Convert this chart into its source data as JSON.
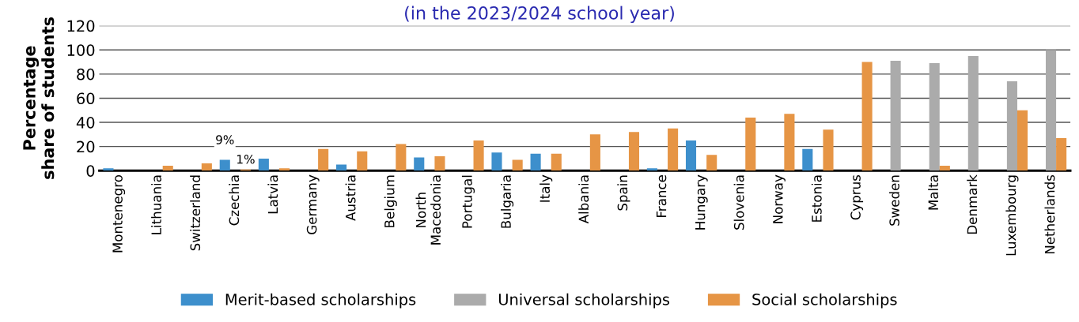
{
  "chart_data": {
    "type": "bar",
    "subtitle": "(in the 2023/2024 school year)",
    "ylabel": "Percentage\nshare of students",
    "categories": [
      "Montenegro",
      "Lithuania",
      "Switzerland",
      "Czechia",
      "Latvia",
      "Germany",
      "Austria",
      "Belgium",
      "North\nMacedonia",
      "Portugal",
      "Bulgaria",
      "Italy",
      "Albania",
      "Spain",
      "France",
      "Hungary",
      "Slovenia",
      "Norway",
      "Estonia",
      "Cyprus",
      "Sweden",
      "Malta",
      "Denmark",
      "Luxembourg",
      "Netherlands"
    ],
    "series": [
      {
        "name": "Merit-based scholarships",
        "color": "#3d8fcc",
        "values": [
          2,
          null,
          null,
          9,
          10,
          null,
          5,
          null,
          11,
          null,
          15,
          14,
          null,
          null,
          2,
          25,
          null,
          null,
          18,
          null,
          null,
          null,
          null,
          null,
          null
        ],
        "value_labels": [
          null,
          null,
          null,
          "9%",
          null,
          null,
          null,
          null,
          null,
          null,
          null,
          null,
          null,
          null,
          null,
          null,
          null,
          null,
          null,
          null,
          null,
          null,
          null,
          null,
          null
        ]
      },
      {
        "name": "Universal scholarships",
        "color": "#ababab",
        "values": [
          null,
          null,
          null,
          null,
          null,
          null,
          null,
          null,
          null,
          null,
          null,
          null,
          null,
          null,
          null,
          null,
          null,
          null,
          null,
          null,
          91,
          89,
          95,
          74,
          100
        ]
      },
      {
        "name": "Social scholarships",
        "color": "#e69545",
        "values": [
          null,
          4,
          6,
          1,
          2,
          18,
          16,
          22,
          12,
          25,
          9,
          14,
          30,
          32,
          35,
          13,
          44,
          47,
          34,
          90,
          null,
          4,
          null,
          50,
          27
        ],
        "value_labels": [
          null,
          null,
          null,
          "1%",
          null,
          null,
          null,
          null,
          null,
          null,
          null,
          null,
          null,
          null,
          null,
          null,
          null,
          null,
          null,
          null,
          null,
          null,
          null,
          null,
          null
        ]
      }
    ],
    "ylim": [
      0,
      120
    ],
    "yticks": [
      0,
      20,
      40,
      60,
      80,
      100,
      120
    ],
    "grid": "y",
    "legend": "bottom"
  }
}
